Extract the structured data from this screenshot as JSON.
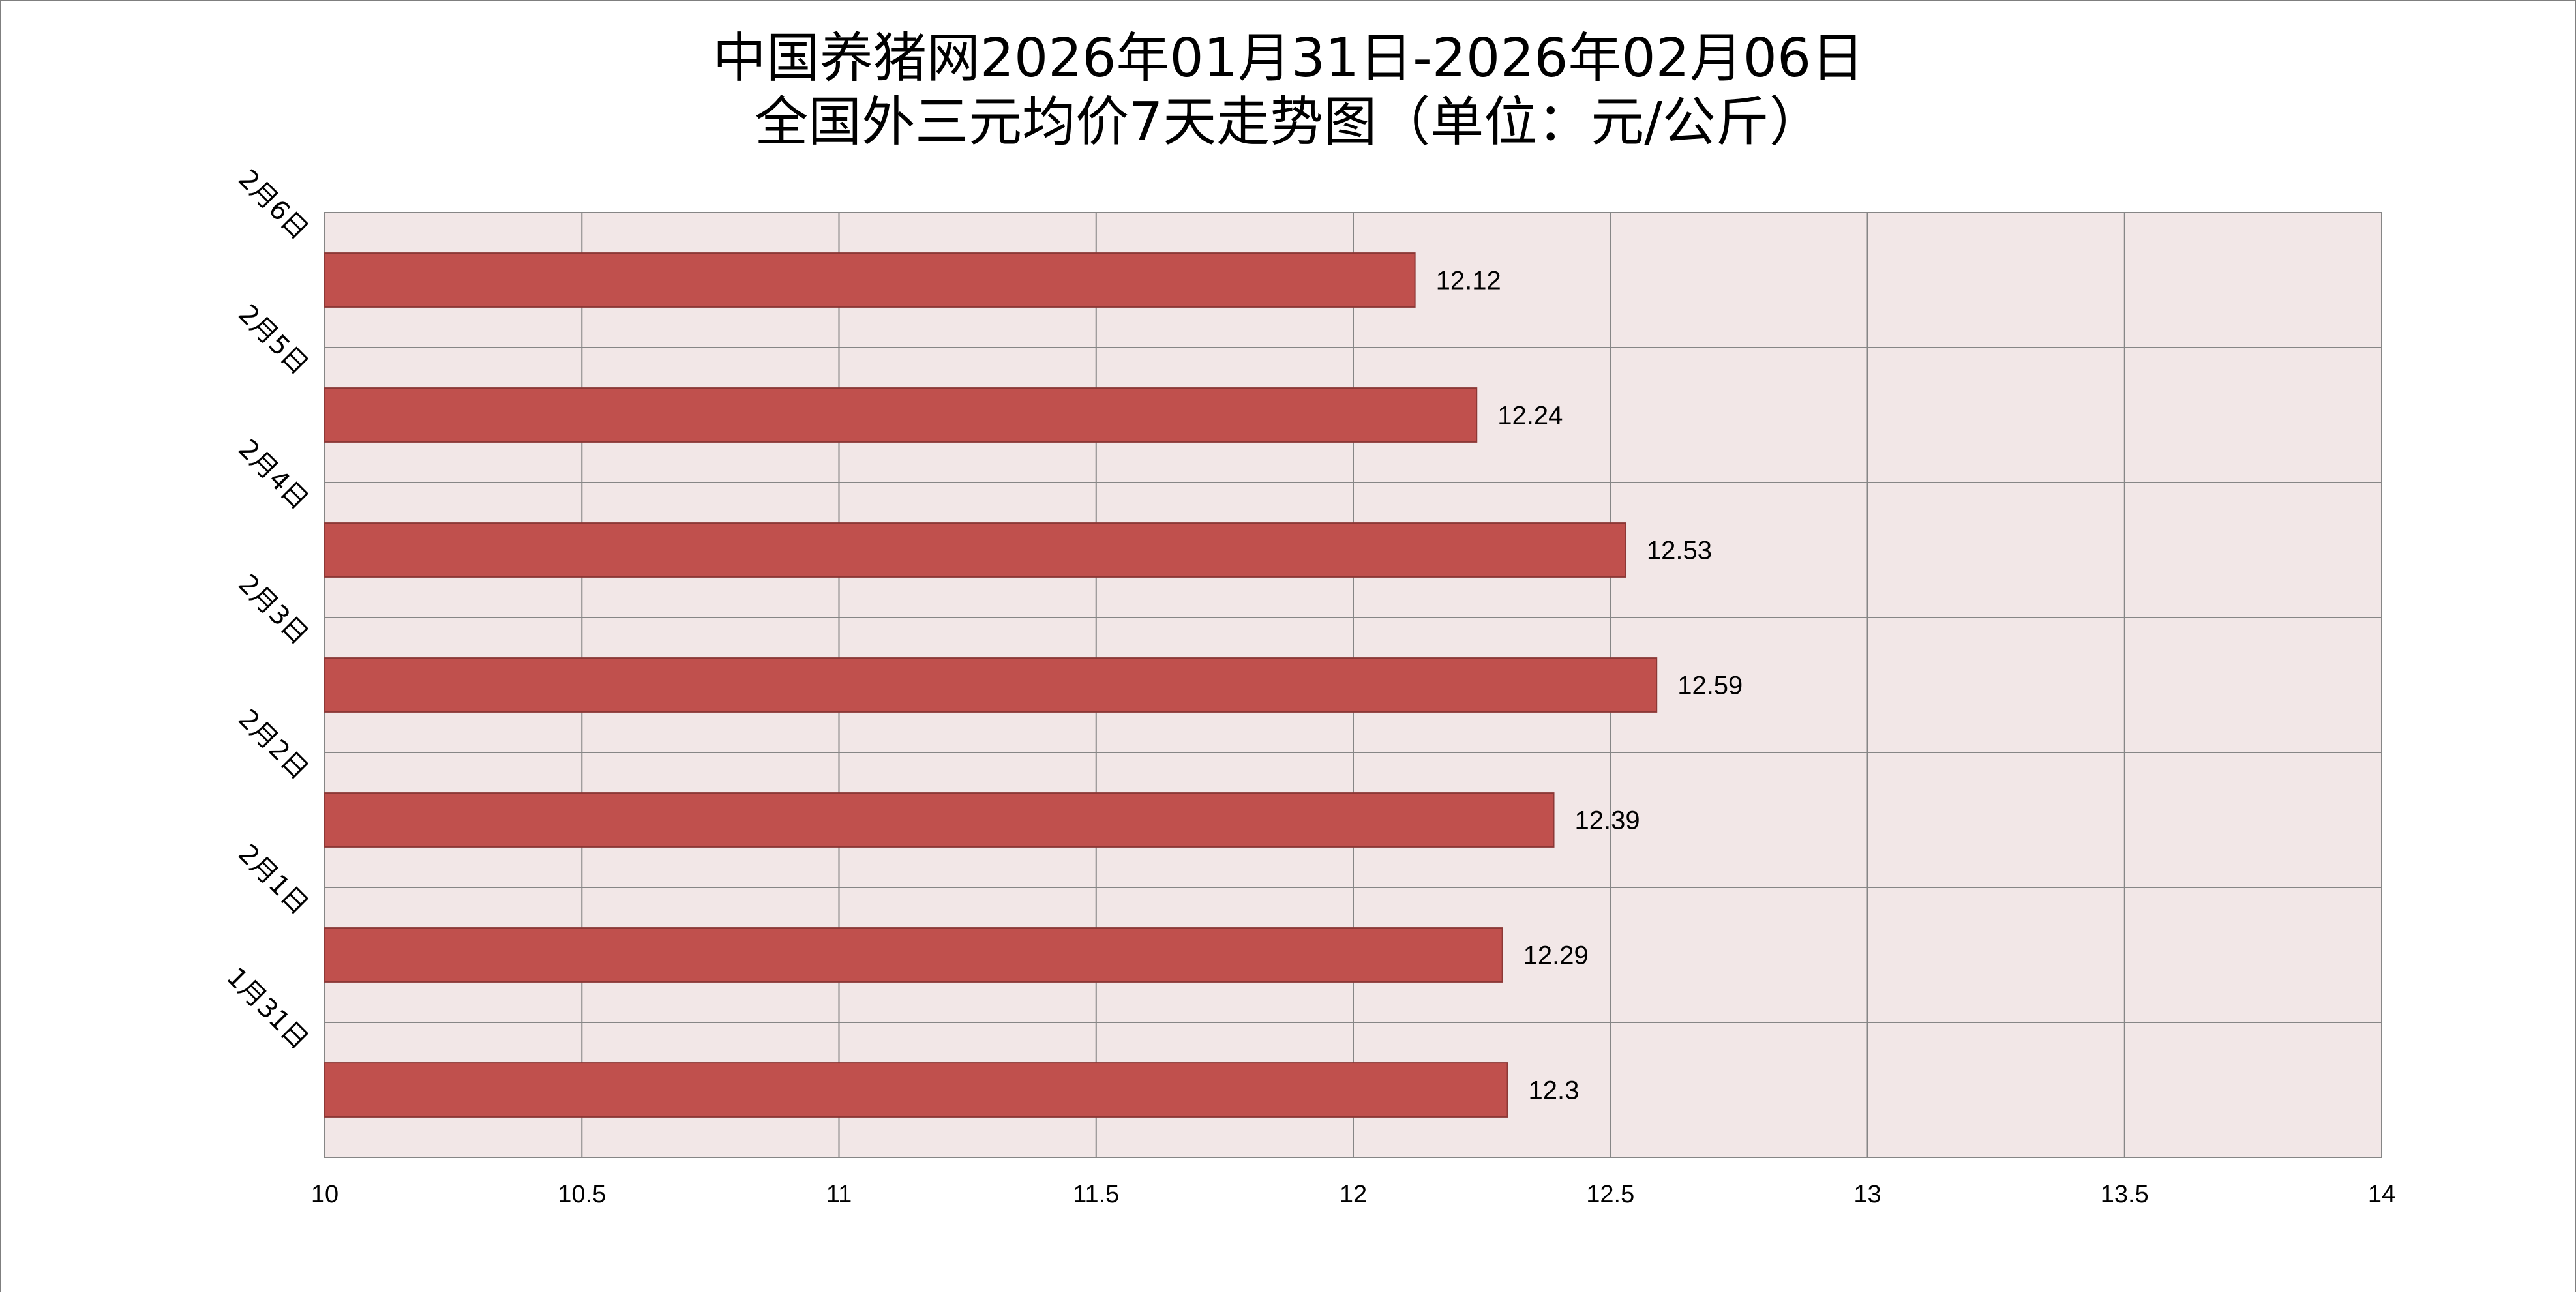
{
  "chart_data": {
    "type": "bar",
    "orientation": "horizontal",
    "title_line1": "中国养猪网2026年01月31日-2026年02月06日",
    "title_line2": "全国外三元均价7天走势图（单位：元/公斤）",
    "categories": [
      "2月6日",
      "2月5日",
      "2月4日",
      "2月3日",
      "2月2日",
      "2月1日",
      "1月31日"
    ],
    "values": [
      12.12,
      12.24,
      12.53,
      12.59,
      12.39,
      12.29,
      12.3
    ],
    "data_labels": [
      "12.12",
      "12.24",
      "12.53",
      "12.59",
      "12.39",
      "12.29",
      "12.3"
    ],
    "xlim": [
      10,
      14
    ],
    "x_ticks": [
      "10",
      "10.5",
      "11",
      "11.5",
      "12",
      "12.5",
      "13",
      "13.5",
      "14"
    ],
    "xlabel": "",
    "ylabel": "",
    "grid": true,
    "legend": "none",
    "colors": {
      "bar": "#c0504d",
      "bar_border": "#8c3836",
      "plot_background": "#f2e7e7",
      "grid": "#868686"
    }
  }
}
